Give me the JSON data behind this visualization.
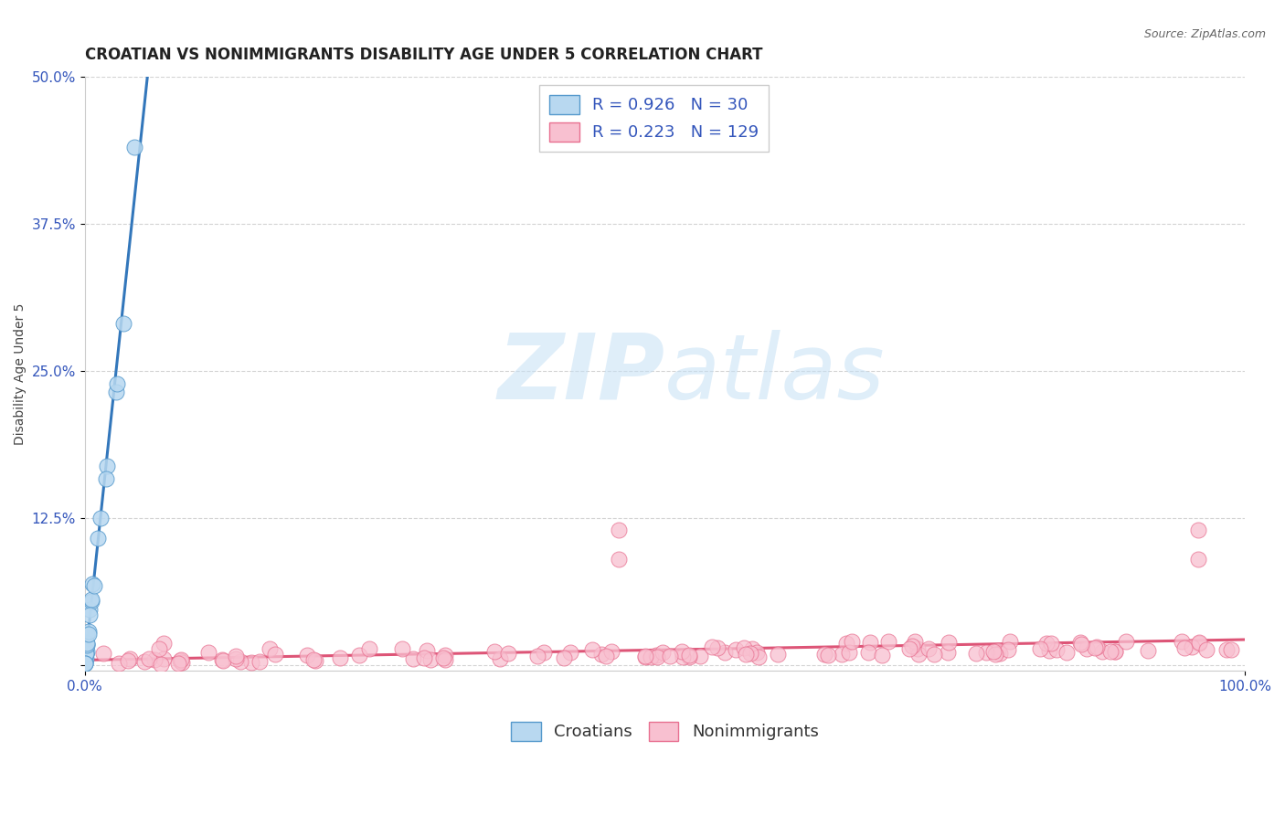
{
  "title": "CROATIAN VS NONIMMIGRANTS DISABILITY AGE UNDER 5 CORRELATION CHART",
  "source": "Source: ZipAtlas.com",
  "ylabel": "Disability Age Under 5",
  "xlim": [
    0,
    1.0
  ],
  "ylim": [
    -0.005,
    0.5
  ],
  "yticks": [
    0.0,
    0.125,
    0.25,
    0.375,
    0.5
  ],
  "ytick_labels": [
    "",
    "12.5%",
    "25.0%",
    "37.5%",
    "50.0%"
  ],
  "xtick_labels": [
    "0.0%",
    "100.0%"
  ],
  "background_color": "#ffffff",
  "grid_color": "#c8c8c8",
  "watermark_zip": "ZIP",
  "watermark_atlas": "atlas",
  "croatian_color": "#b8d8f0",
  "croatian_edge_color": "#5599cc",
  "nonimmigrant_color": "#f8c0d0",
  "nonimmigrant_edge_color": "#e87090",
  "line_croatian_color": "#3377bb",
  "line_nonimmigrant_color": "#dd5577",
  "legend_text_color": "#3355bb",
  "R_croatian": 0.926,
  "N_croatian": 30,
  "R_nonimmigrant": 0.223,
  "N_nonimmigrant": 129,
  "title_fontsize": 12,
  "axis_label_fontsize": 10,
  "tick_fontsize": 11,
  "legend_fontsize": 13
}
